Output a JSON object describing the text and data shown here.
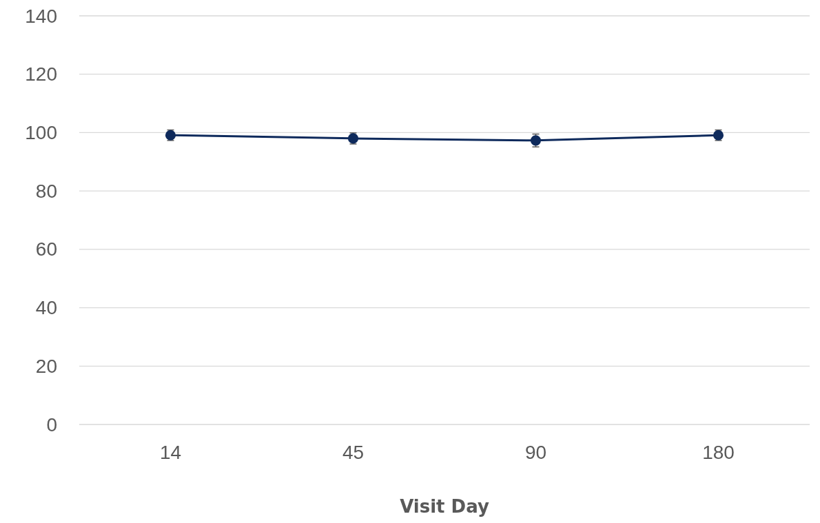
{
  "chart_data": {
    "type": "line",
    "xlabel": "Visit Day",
    "categories": [
      "14",
      "45",
      "90",
      "180"
    ],
    "series": [
      {
        "color": "#0e2a5c",
        "values": [
          99.1,
          98.0,
          97.3,
          99.1
        ],
        "errors": [
          1.8,
          1.9,
          2.2,
          1.8
        ]
      }
    ],
    "ylim": [
      0,
      140
    ],
    "yticks": [
      0,
      20,
      40,
      60,
      80,
      100,
      120,
      140
    ],
    "grid": "y",
    "marker": "circle",
    "line_style": "solid"
  }
}
